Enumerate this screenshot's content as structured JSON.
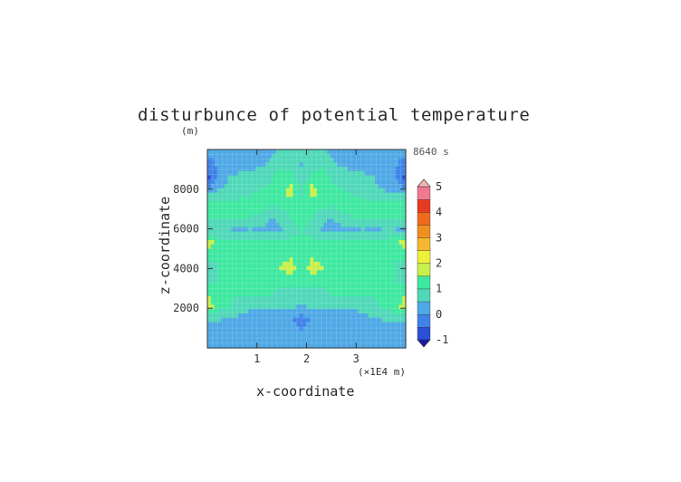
{
  "chart_data": {
    "type": "heatmap",
    "title": "disturbunce of potential temperature",
    "xlabel": "x-coordinate",
    "ylabel": "z-coordinate",
    "y_unit": "(m)",
    "x_unit": "(×1E4 m)",
    "time_label": "8640 s",
    "xlim": [
      0,
      4
    ],
    "ylim": [
      0,
      10000
    ],
    "x_ticks": [
      "1",
      "2",
      "3"
    ],
    "x_tick_values": [
      1,
      2,
      3
    ],
    "y_ticks": [
      "2000",
      "4000",
      "6000",
      "8000"
    ],
    "y_tick_values": [
      2000,
      4000,
      6000,
      8000
    ],
    "colorbar": {
      "min": -1,
      "max": 5,
      "step": 0.5,
      "labels": [
        "-1",
        "0",
        "1",
        "2",
        "3",
        "4",
        "5"
      ],
      "label_values": [
        -1,
        0,
        1,
        2,
        3,
        4,
        5
      ],
      "colors": [
        "#1a1aa8",
        "#2b4fd6",
        "#3f82e8",
        "#4fa8e6",
        "#4fd8b8",
        "#3ee8a0",
        "#c8f04a",
        "#f0f03a",
        "#f5b82e",
        "#f09020",
        "#f06a1e",
        "#e83a22",
        "#f07890",
        "#f5b4b4"
      ]
    },
    "field": [
      [
        0.1,
        0.1,
        0.2,
        0.2,
        0.3,
        0.3,
        0.4,
        0.6,
        0.9,
        0.7,
        0.9,
        0.6,
        0.4,
        0.3,
        0.3,
        0.2,
        0.2,
        0.1,
        0.1,
        0.1
      ],
      [
        -0.2,
        0.1,
        0.2,
        0.3,
        0.3,
        0.4,
        0.6,
        0.9,
        0.8,
        0.4,
        0.8,
        0.9,
        0.6,
        0.4,
        0.3,
        0.3,
        0.2,
        0.1,
        0.1,
        -0.2
      ],
      [
        -0.6,
        0.2,
        0.5,
        0.6,
        0.7,
        0.8,
        0.9,
        1.3,
        1.1,
        0.7,
        1.1,
        1.3,
        0.9,
        0.8,
        0.7,
        0.6,
        0.5,
        0.2,
        0.2,
        -0.6
      ],
      [
        0.3,
        0.5,
        0.6,
        0.8,
        0.9,
        1.0,
        1.1,
        1.3,
        1.8,
        0.9,
        1.8,
        1.3,
        1.1,
        1.0,
        0.9,
        0.8,
        0.6,
        0.5,
        0.4,
        0.3
      ],
      [
        1.1,
        1.0,
        1.0,
        1.1,
        1.1,
        1.2,
        1.2,
        1.2,
        1.3,
        1.1,
        1.3,
        1.2,
        1.2,
        1.2,
        1.1,
        1.1,
        1.0,
        1.0,
        1.0,
        1.1
      ],
      [
        1.0,
        1.0,
        1.0,
        1.0,
        1.0,
        0.9,
        0.5,
        0.7,
        1.0,
        1.1,
        1.0,
        0.7,
        0.5,
        0.9,
        1.0,
        1.0,
        1.0,
        1.0,
        1.0,
        1.0
      ],
      [
        0.5,
        0.5,
        0.5,
        0.4,
        0.5,
        0.4,
        0.3,
        0.4,
        0.9,
        1.0,
        0.9,
        0.4,
        0.3,
        0.4,
        0.4,
        0.5,
        0.4,
        0.5,
        0.5,
        0.4
      ],
      [
        1.7,
        1.1,
        1.0,
        1.0,
        1.0,
        1.0,
        1.0,
        1.0,
        1.1,
        1.0,
        1.1,
        1.0,
        1.0,
        1.0,
        1.0,
        1.0,
        1.1,
        1.1,
        1.4,
        1.7
      ],
      [
        1.1,
        1.0,
        1.1,
        1.1,
        1.2,
        1.2,
        1.2,
        1.2,
        1.3,
        1.1,
        1.3,
        1.2,
        1.2,
        1.2,
        1.2,
        1.1,
        1.1,
        1.1,
        1.0,
        1.1
      ],
      [
        0.8,
        1.0,
        1.0,
        1.1,
        1.0,
        1.0,
        1.1,
        1.5,
        1.9,
        1.1,
        1.9,
        1.5,
        1.1,
        1.0,
        1.0,
        1.0,
        1.0,
        1.0,
        1.0,
        0.8
      ],
      [
        0.8,
        1.0,
        1.0,
        1.1,
        1.1,
        1.1,
        1.1,
        1.1,
        1.2,
        1.1,
        1.2,
        1.1,
        1.1,
        1.1,
        1.1,
        1.0,
        1.0,
        1.0,
        1.0,
        0.8
      ],
      [
        1.4,
        1.2,
        1.1,
        1.0,
        1.0,
        1.0,
        1.0,
        0.9,
        0.8,
        0.9,
        0.8,
        0.9,
        1.0,
        1.0,
        1.0,
        1.0,
        1.0,
        1.1,
        1.2,
        1.4
      ],
      [
        1.7,
        1.2,
        1.0,
        0.8,
        0.6,
        0.6,
        0.5,
        0.5,
        0.6,
        0.4,
        0.6,
        0.5,
        0.5,
        0.6,
        0.6,
        0.7,
        0.9,
        1.0,
        1.3,
        1.7
      ],
      [
        0.5,
        0.5,
        0.4,
        0.3,
        0.2,
        0.2,
        0.3,
        0.3,
        0.1,
        -0.3,
        0.1,
        0.3,
        0.3,
        0.2,
        0.2,
        0.3,
        0.4,
        0.5,
        0.5,
        0.5
      ],
      [
        0.4,
        0.3,
        0.3,
        0.2,
        0.2,
        0.2,
        0.2,
        0.2,
        0.2,
        0.1,
        0.2,
        0.2,
        0.2,
        0.2,
        0.2,
        0.2,
        0.3,
        0.3,
        0.3,
        0.4
      ],
      [
        0.3,
        0.2,
        0.2,
        0.1,
        0.1,
        0.1,
        0.0,
        0.0,
        0.1,
        0.0,
        0.1,
        0.0,
        0.0,
        0.1,
        0.1,
        0.1,
        0.2,
        0.2,
        0.2,
        0.3
      ]
    ]
  }
}
